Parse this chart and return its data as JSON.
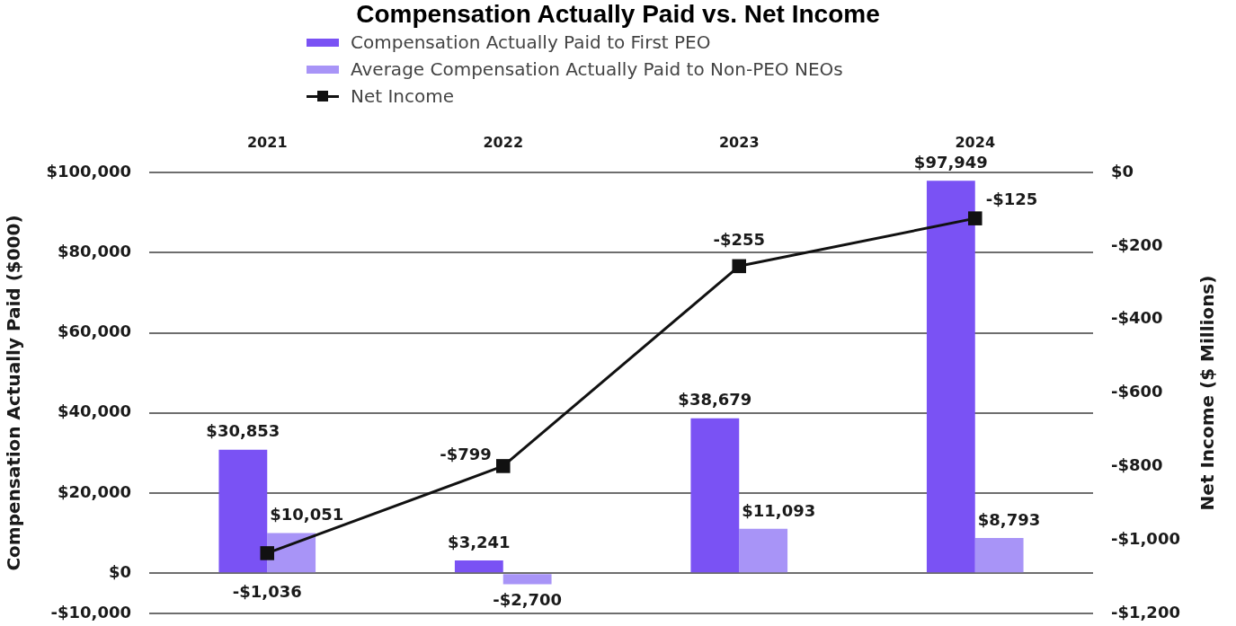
{
  "chart_data": {
    "type": "bar",
    "title": "Compensation Actually Paid vs. Net Income",
    "ylabel": "Compensation Actually Paid ($000)",
    "y2label": "Net Income ($ Millions)",
    "categories": [
      "2021",
      "2022",
      "2023",
      "2024"
    ],
    "series": [
      {
        "name": "Compensation Actually Paid to First PEO",
        "color": "#7a52f4",
        "values": [
          30853,
          3241,
          38679,
          97949
        ],
        "value_labels": [
          "$30,853",
          "$3,241",
          "$38,679",
          "$97,949"
        ]
      },
      {
        "name": "Average Compensation Actually Paid to Non-PEO NEOs",
        "color": "#a894f7",
        "values": [
          10051,
          -2700,
          11093,
          8793
        ],
        "value_labels": [
          "$10,051",
          "-$2,700",
          "$11,093",
          "$8,793"
        ]
      },
      {
        "name": "Net Income",
        "type": "line",
        "axis": "y2",
        "color": "#111111",
        "marker": "square",
        "values": [
          -1036,
          -799,
          -255,
          -125
        ],
        "value_labels": [
          "-$1,036",
          "-$799",
          "-$255",
          "-$125"
        ]
      }
    ],
    "ylim": [
      -10000,
      100000
    ],
    "yticks": [
      {
        "value": -10000,
        "label": "-$10,000"
      },
      {
        "value": 0,
        "label": "$0"
      },
      {
        "value": 20000,
        "label": "$20,000"
      },
      {
        "value": 40000,
        "label": "$40,000"
      },
      {
        "value": 60000,
        "label": "$60,000"
      },
      {
        "value": 80000,
        "label": "$80,000"
      },
      {
        "value": 100000,
        "label": "$100,000"
      }
    ],
    "y2lim": [
      -1200,
      0
    ],
    "y2ticks": [
      {
        "value": -1200,
        "label": "-$1,200"
      },
      {
        "value": -1000,
        "label": "-$1,000"
      },
      {
        "value": -800,
        "label": "-$800"
      },
      {
        "value": -600,
        "label": "-$600"
      },
      {
        "value": -400,
        "label": "-$400"
      },
      {
        "value": -200,
        "label": "-$200"
      },
      {
        "value": 0,
        "label": "$0"
      }
    ],
    "grid": "y",
    "legend": "top"
  }
}
